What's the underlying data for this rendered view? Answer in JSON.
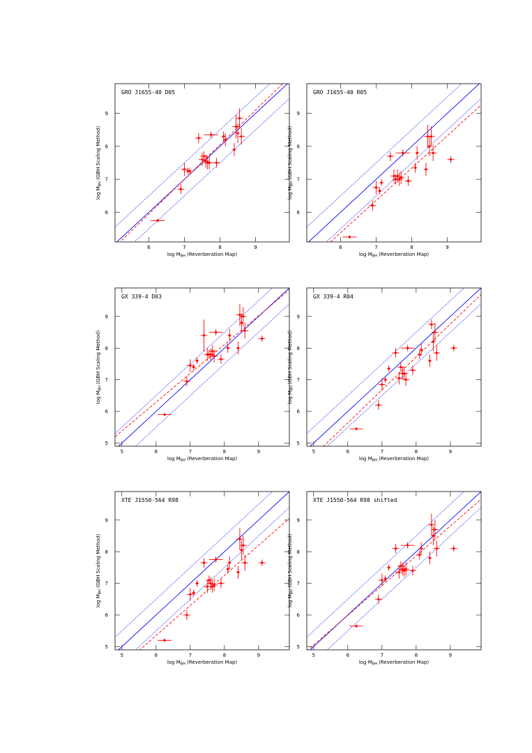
{
  "chart_data": [
    {
      "type": "scatter",
      "title": "GRO J1655-40 D05",
      "xlabel": {
        "main": "log M",
        "sub": "BH",
        "rest": " (Reverberation Map)"
      },
      "ylabel": {
        "main": "log M",
        "sub": "BH",
        "rest": " (GBH Scaling Method)"
      },
      "xlim": [
        5.05,
        9.95
      ],
      "ylim": [
        5.1,
        9.9
      ],
      "xticks": [
        6,
        7,
        8,
        9
      ],
      "yticks": [
        6,
        7,
        8,
        9
      ],
      "color": "#ff0000",
      "x": [
        6.25,
        6.9,
        7.0,
        7.1,
        7.15,
        7.4,
        7.5,
        7.55,
        7.6,
        7.65,
        7.7,
        7.75,
        7.9,
        8.1,
        8.15,
        8.4,
        8.45,
        8.5,
        8.55,
        8.6
      ],
      "y": [
        5.75,
        6.7,
        7.3,
        7.25,
        7.25,
        8.25,
        7.6,
        7.7,
        7.55,
        7.5,
        7.5,
        8.35,
        7.5,
        8.3,
        8.2,
        7.9,
        8.6,
        8.4,
        8.85,
        8.3
      ],
      "xerr": [
        0.2,
        0.1,
        0.1,
        0.05,
        0.05,
        0.1,
        0.1,
        0.1,
        0.1,
        0.1,
        0.1,
        0.2,
        0.1,
        0.05,
        0.05,
        0.05,
        0.1,
        0.05,
        0.1,
        0.1
      ],
      "yerr": [
        0.05,
        0.15,
        0.2,
        0.1,
        0.1,
        0.15,
        0.2,
        0.15,
        0.2,
        0.2,
        0.2,
        0.1,
        0.15,
        0.15,
        0.2,
        0.2,
        0.35,
        0.3,
        0.3,
        0.25
      ],
      "lines": [
        {
          "slope": 1,
          "intercept": 0,
          "color": "#0000ff",
          "style": "solid"
        },
        {
          "slope": 1,
          "intercept": 0.5,
          "color": "#0000ff",
          "style": "dotted"
        },
        {
          "slope": 1,
          "intercept": -0.5,
          "color": "#0000ff",
          "style": "dotted"
        },
        {
          "slope": 1.05,
          "intercept": -0.35,
          "color": "#ff0000",
          "style": "dashed"
        }
      ]
    },
    {
      "type": "scatter",
      "title": "GRO J1655-40 R05",
      "xlabel": {
        "main": "log M",
        "sub": "BH",
        "rest": " (Reverberation Map)"
      },
      "ylabel": {
        "main": "log M",
        "sub": "BH",
        "rest": " (GBH Scaling Method)"
      },
      "xlim": [
        5.05,
        9.95
      ],
      "ylim": [
        5.1,
        9.9
      ],
      "xticks": [
        6,
        7,
        8,
        9
      ],
      "yticks": [
        6,
        7,
        8,
        9
      ],
      "color": "#ff0000",
      "x": [
        6.25,
        6.9,
        7.0,
        7.1,
        7.15,
        7.4,
        7.5,
        7.55,
        7.6,
        7.65,
        7.7,
        7.75,
        7.9,
        8.1,
        8.15,
        8.4,
        8.45,
        8.5,
        8.55,
        8.6,
        9.1
      ],
      "y": [
        5.25,
        6.2,
        6.75,
        6.65,
        6.9,
        7.7,
        7.1,
        7.0,
        7.1,
        7.0,
        7.05,
        7.8,
        6.95,
        7.35,
        7.8,
        7.3,
        8.3,
        8.0,
        8.3,
        7.8,
        7.6
      ],
      "xerr": [
        0.2,
        0.1,
        0.1,
        0.05,
        0.05,
        0.1,
        0.1,
        0.1,
        0.1,
        0.1,
        0.1,
        0.2,
        0.1,
        0.05,
        0.05,
        0.05,
        0.1,
        0.05,
        0.1,
        0.1,
        0.1
      ],
      "yerr": [
        0.05,
        0.15,
        0.2,
        0.1,
        0.1,
        0.15,
        0.2,
        0.15,
        0.2,
        0.2,
        0.2,
        0.1,
        0.15,
        0.15,
        0.2,
        0.2,
        0.35,
        0.3,
        0.3,
        0.25,
        0.1
      ],
      "lines": [
        {
          "slope": 1,
          "intercept": 0,
          "color": "#0000ff",
          "style": "solid"
        },
        {
          "slope": 1,
          "intercept": 0.5,
          "color": "#0000ff",
          "style": "dotted"
        },
        {
          "slope": 1,
          "intercept": -0.5,
          "color": "#0000ff",
          "style": "dotted"
        },
        {
          "slope": 0.98,
          "intercept": -0.5,
          "color": "#ff0000",
          "style": "dashed"
        }
      ]
    },
    {
      "type": "scatter",
      "title": "GX 339-4 D03",
      "xlabel": {
        "main": "log M",
        "sub": "BH",
        "rest": " (Reverberation Map)"
      },
      "ylabel": {
        "main": "log M",
        "sub": "BH",
        "rest": " (GBH Scaling Method)"
      },
      "xlim": [
        4.8,
        9.9
      ],
      "ylim": [
        4.9,
        9.9
      ],
      "xticks": [
        5,
        6,
        7,
        8,
        9
      ],
      "yticks": [
        5,
        6,
        7,
        8,
        9
      ],
      "color": "#ff0000",
      "x": [
        6.25,
        6.9,
        7.0,
        7.1,
        7.2,
        7.4,
        7.5,
        7.55,
        7.6,
        7.65,
        7.7,
        7.75,
        7.9,
        8.1,
        8.15,
        8.4,
        8.45,
        8.5,
        8.55,
        8.6,
        9.1
      ],
      "y": [
        5.9,
        6.95,
        7.45,
        7.4,
        7.6,
        8.4,
        7.8,
        7.8,
        7.8,
        7.9,
        7.75,
        8.5,
        7.65,
        8.0,
        8.4,
        8.0,
        9.05,
        8.8,
        9.0,
        8.55,
        8.3
      ],
      "xerr": [
        0.2,
        0.1,
        0.1,
        0.05,
        0.05,
        0.1,
        0.1,
        0.1,
        0.1,
        0.1,
        0.1,
        0.2,
        0.1,
        0.05,
        0.05,
        0.05,
        0.1,
        0.05,
        0.1,
        0.1,
        0.1
      ],
      "yerr": [
        0.05,
        0.15,
        0.2,
        0.1,
        0.1,
        0.5,
        0.2,
        0.15,
        0.2,
        0.2,
        0.2,
        0.1,
        0.15,
        0.15,
        0.2,
        0.2,
        0.35,
        0.3,
        0.3,
        0.25,
        0.1
      ],
      "lines": [
        {
          "slope": 1,
          "intercept": 0,
          "color": "#0000ff",
          "style": "solid"
        },
        {
          "slope": 1,
          "intercept": 0.5,
          "color": "#0000ff",
          "style": "dotted"
        },
        {
          "slope": 1,
          "intercept": -0.5,
          "color": "#0000ff",
          "style": "dotted"
        },
        {
          "slope": 0.91,
          "intercept": 0.83,
          "color": "#ff0000",
          "style": "dashed"
        }
      ]
    },
    {
      "type": "scatter",
      "title": "GX 339-4 R04",
      "xlabel": {
        "main": "log M",
        "sub": "BH",
        "rest": " (Reverberation Map)"
      },
      "ylabel": {
        "main": "log M",
        "sub": "BH",
        "rest": " (GBH Scaling Method)"
      },
      "xlim": [
        4.8,
        9.9
      ],
      "ylim": [
        4.9,
        9.9
      ],
      "xticks": [
        5,
        6,
        7,
        8,
        9
      ],
      "yticks": [
        5,
        6,
        7,
        8,
        9
      ],
      "color": "#ff0000",
      "x": [
        6.25,
        6.9,
        7.0,
        7.1,
        7.2,
        7.4,
        7.5,
        7.55,
        7.6,
        7.65,
        7.7,
        7.75,
        7.9,
        8.1,
        8.15,
        8.4,
        8.45,
        8.5,
        8.55,
        8.6,
        9.1
      ],
      "y": [
        5.45,
        6.2,
        6.85,
        7.0,
        7.35,
        7.85,
        7.05,
        7.4,
        7.2,
        7.2,
        7.0,
        8.0,
        7.3,
        7.8,
        7.95,
        7.6,
        8.75,
        8.2,
        8.5,
        7.85,
        8.0
      ],
      "xerr": [
        0.2,
        0.1,
        0.1,
        0.05,
        0.05,
        0.1,
        0.1,
        0.1,
        0.1,
        0.1,
        0.1,
        0.2,
        0.1,
        0.05,
        0.05,
        0.05,
        0.1,
        0.05,
        0.1,
        0.1,
        0.1
      ],
      "yerr": [
        0.05,
        0.15,
        0.2,
        0.1,
        0.1,
        0.15,
        0.2,
        0.15,
        0.2,
        0.2,
        0.2,
        0.1,
        0.15,
        0.15,
        0.2,
        0.2,
        0.15,
        0.3,
        0.3,
        0.25,
        0.1
      ],
      "lines": [
        {
          "slope": 1,
          "intercept": 0,
          "color": "#0000ff",
          "style": "solid"
        },
        {
          "slope": 1,
          "intercept": 0.5,
          "color": "#0000ff",
          "style": "dotted"
        },
        {
          "slope": 1,
          "intercept": -0.5,
          "color": "#0000ff",
          "style": "dotted"
        },
        {
          "slope": 1.04,
          "intercept": -0.6,
          "color": "#ff0000",
          "style": "dashed"
        }
      ]
    },
    {
      "type": "scatter",
      "title": "XTE J1550-564 R98",
      "xlabel": {
        "main": "log M",
        "sub": "BH",
        "rest": " (Reverberation Map)"
      },
      "ylabel": {
        "main": "log M",
        "sub": "BH",
        "rest": " (GBH Scaling Method)"
      },
      "xlim": [
        4.8,
        9.9
      ],
      "ylim": [
        4.9,
        9.9
      ],
      "xticks": [
        5,
        6,
        7,
        8,
        9
      ],
      "yticks": [
        5,
        6,
        7,
        8,
        9
      ],
      "color": "#ff0000",
      "x": [
        6.25,
        6.9,
        7.0,
        7.1,
        7.2,
        7.4,
        7.5,
        7.55,
        7.6,
        7.65,
        7.7,
        7.75,
        7.9,
        8.1,
        8.15,
        8.4,
        8.45,
        8.5,
        8.55,
        8.6,
        9.1
      ],
      "y": [
        5.2,
        6.0,
        6.65,
        6.7,
        7.0,
        7.65,
        6.9,
        7.1,
        7.0,
        6.9,
        6.95,
        7.75,
        7.0,
        7.45,
        7.65,
        7.35,
        8.4,
        8.05,
        8.2,
        7.65,
        7.65
      ],
      "xerr": [
        0.2,
        0.1,
        0.1,
        0.05,
        0.05,
        0.1,
        0.1,
        0.1,
        0.1,
        0.1,
        0.1,
        0.2,
        0.1,
        0.05,
        0.05,
        0.05,
        0.1,
        0.05,
        0.1,
        0.1,
        0.1
      ],
      "yerr": [
        0.05,
        0.15,
        0.2,
        0.1,
        0.1,
        0.15,
        0.2,
        0.15,
        0.2,
        0.2,
        0.2,
        0.1,
        0.15,
        0.15,
        0.2,
        0.2,
        0.35,
        0.3,
        0.3,
        0.25,
        0.1
      ],
      "lines": [
        {
          "slope": 1,
          "intercept": 0,
          "color": "#0000ff",
          "style": "solid"
        },
        {
          "slope": 1,
          "intercept": 0.5,
          "color": "#0000ff",
          "style": "dotted"
        },
        {
          "slope": 1,
          "intercept": -0.5,
          "color": "#0000ff",
          "style": "dotted"
        },
        {
          "slope": 0.95,
          "intercept": -0.35,
          "color": "#ff0000",
          "style": "dashed"
        }
      ]
    },
    {
      "type": "scatter",
      "title": "XTE J1550-564 R98 shifted",
      "xlabel": {
        "main": "log M",
        "sub": "BH",
        "rest": " (Reverberation Map)"
      },
      "ylabel": {
        "main": "log M",
        "sub": "BH",
        "rest": " (GBH Scaling Method)"
      },
      "xlim": [
        4.8,
        9.9
      ],
      "ylim": [
        4.9,
        9.9
      ],
      "xticks": [
        5,
        6,
        7,
        8,
        9
      ],
      "yticks": [
        5,
        6,
        7,
        8,
        9
      ],
      "color": "#ff0000",
      "x": [
        6.25,
        6.9,
        7.0,
        7.1,
        7.2,
        7.4,
        7.5,
        7.55,
        7.6,
        7.65,
        7.7,
        7.75,
        7.9,
        8.1,
        8.15,
        8.4,
        8.45,
        8.5,
        8.55,
        8.6,
        9.1
      ],
      "y": [
        5.65,
        6.5,
        7.1,
        7.15,
        7.5,
        8.1,
        7.35,
        7.55,
        7.45,
        7.4,
        7.45,
        8.2,
        7.4,
        7.9,
        8.1,
        7.8,
        8.85,
        8.5,
        8.7,
        8.1,
        8.1
      ],
      "xerr": [
        0.2,
        0.1,
        0.1,
        0.05,
        0.05,
        0.1,
        0.1,
        0.1,
        0.1,
        0.1,
        0.1,
        0.2,
        0.1,
        0.05,
        0.05,
        0.05,
        0.1,
        0.05,
        0.1,
        0.1,
        0.1
      ],
      "yerr": [
        0.05,
        0.15,
        0.2,
        0.1,
        0.1,
        0.15,
        0.2,
        0.15,
        0.2,
        0.2,
        0.2,
        0.1,
        0.15,
        0.15,
        0.2,
        0.2,
        0.35,
        0.3,
        0.3,
        0.25,
        0.1
      ],
      "lines": [
        {
          "slope": 1,
          "intercept": 0,
          "color": "#0000ff",
          "style": "solid"
        },
        {
          "slope": 1,
          "intercept": 0.5,
          "color": "#0000ff",
          "style": "dotted"
        },
        {
          "slope": 1,
          "intercept": -0.5,
          "color": "#0000ff",
          "style": "dotted"
        },
        {
          "slope": 0.94,
          "intercept": 0.35,
          "color": "#ff0000",
          "style": "dashed"
        }
      ]
    }
  ]
}
